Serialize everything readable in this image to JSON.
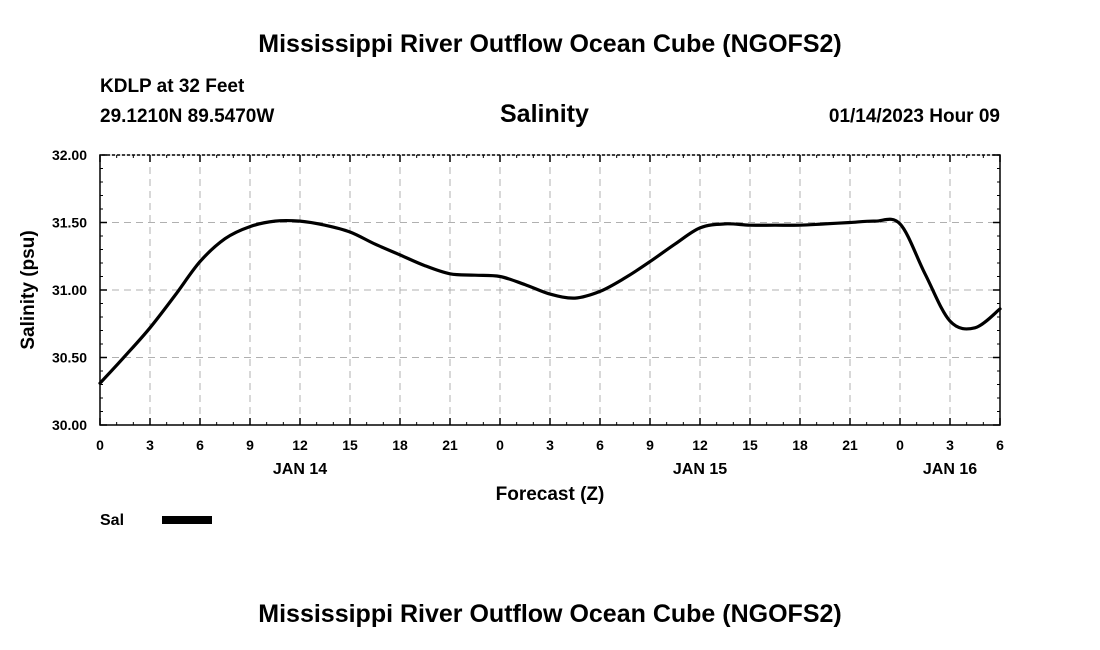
{
  "chart_data": {
    "type": "line",
    "title": "Mississippi River Outflow Ocean Cube (NGOFS2)",
    "footer_title": "Mississippi River Outflow Ocean Cube (NGOFS2)",
    "station": "KDLP at 32 Feet",
    "coordinates": "29.1210N  89.5470W",
    "subtitle": "Salinity",
    "datetime": "01/14/2023 Hour 09",
    "xlabel": "Forecast (Z)",
    "ylabel": "Salinity (psu)",
    "xlim": [
      0,
      54
    ],
    "ylim": [
      30.0,
      32.0
    ],
    "grid": true,
    "x_ticks": [
      0,
      3,
      6,
      9,
      12,
      15,
      18,
      21,
      24,
      27,
      30,
      33,
      36,
      39,
      42,
      45,
      48,
      51,
      54
    ],
    "x_tick_labels": [
      "0",
      "3",
      "6",
      "9",
      "12",
      "15",
      "18",
      "21",
      "0",
      "3",
      "6",
      "9",
      "12",
      "15",
      "18",
      "21",
      "0",
      "3",
      "6"
    ],
    "y_ticks": [
      30.0,
      30.5,
      31.0,
      31.5,
      32.0
    ],
    "y_tick_labels": [
      "30.00",
      "30.50",
      "31.00",
      "31.50",
      "32.00"
    ],
    "day_labels": [
      {
        "x": 12,
        "label": "JAN 14"
      },
      {
        "x": 36,
        "label": "JAN 15"
      },
      {
        "x": 51,
        "label": "JAN 16"
      }
    ],
    "series": [
      {
        "name": "Sal",
        "color": "#000000",
        "x": [
          0,
          1.5,
          3,
          4.5,
          6,
          7.5,
          9,
          10.5,
          12,
          13.5,
          15,
          16.5,
          18,
          19.5,
          21,
          22.5,
          24,
          25.5,
          27,
          28.5,
          30,
          31.5,
          33,
          34.5,
          36,
          37.5,
          39,
          40.5,
          42,
          43.5,
          45,
          46.5,
          48,
          49.5,
          51,
          52.5,
          54
        ],
        "values": [
          30.31,
          30.51,
          30.72,
          30.96,
          31.21,
          31.38,
          31.47,
          31.51,
          31.51,
          31.48,
          31.43,
          31.34,
          31.26,
          31.18,
          31.12,
          31.11,
          31.1,
          31.04,
          30.97,
          30.94,
          30.99,
          31.09,
          31.21,
          31.34,
          31.46,
          31.49,
          31.48,
          31.48,
          31.48,
          31.49,
          31.5,
          31.51,
          31.49,
          31.12,
          30.77,
          30.72,
          30.86
        ]
      }
    ],
    "legend": [
      {
        "label": "Sal"
      }
    ]
  }
}
